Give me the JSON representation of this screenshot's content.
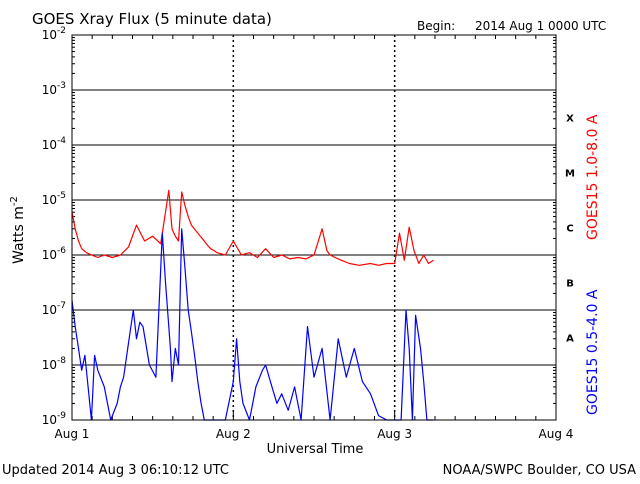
{
  "header": {
    "title": "GOES Xray Flux (5 minute data)",
    "begin_label": "Begin:",
    "begin_value": "2014 Aug 1 0000 UTC"
  },
  "footer": {
    "updated": "Updated 2014 Aug  3 06:10:12 UTC",
    "credit": "NOAA/SWPC Boulder, CO USA"
  },
  "chart_data": {
    "type": "line",
    "title": "GOES Xray Flux (5 minute data)",
    "xlabel": "Universal Time",
    "ylabel": "Watts m-2",
    "ylabel_base": "Watts m",
    "ylabel_sup": "-2",
    "y_scale": "log",
    "ylim": [
      1e-09,
      0.01
    ],
    "y_ticks": [
      {
        "value": 1e-09,
        "mant": "10",
        "exp": "-9"
      },
      {
        "value": 1e-08,
        "mant": "10",
        "exp": "-8"
      },
      {
        "value": 1e-07,
        "mant": "10",
        "exp": "-7"
      },
      {
        "value": 1e-06,
        "mant": "10",
        "exp": "-6"
      },
      {
        "value": 1e-05,
        "mant": "10",
        "exp": "-5"
      },
      {
        "value": 0.0001,
        "mant": "10",
        "exp": "-4"
      },
      {
        "value": 0.001,
        "mant": "10",
        "exp": "-3"
      },
      {
        "value": 0.01,
        "mant": "10",
        "exp": "-2"
      }
    ],
    "x_unit": "days since 2014 Aug 1 0000 UTC",
    "xlim": [
      0,
      3
    ],
    "x_ticks": [
      {
        "value": 0,
        "label": "Aug 1"
      },
      {
        "value": 1,
        "label": "Aug 2"
      },
      {
        "value": 2,
        "label": "Aug 3"
      },
      {
        "value": 3,
        "label": "Aug 4"
      }
    ],
    "day_dividers": [
      1,
      2
    ],
    "grid": "horizontal solid lines at each decade; vertical dotted lines at day boundaries",
    "flare_classes": [
      {
        "label": "X",
        "low": 0.0001,
        "high": 0.001
      },
      {
        "label": "M",
        "low": 1e-05,
        "high": 0.0001
      },
      {
        "label": "C",
        "low": 1e-06,
        "high": 1e-05
      },
      {
        "label": "B",
        "low": 1e-07,
        "high": 1e-06
      },
      {
        "label": "A",
        "low": 1e-08,
        "high": 1e-07
      }
    ],
    "series": [
      {
        "name": "GOES15 1.0-8.0 A",
        "color": "#ff0000",
        "x": [
          0,
          0.02,
          0.04,
          0.06,
          0.09,
          0.12,
          0.16,
          0.2,
          0.25,
          0.3,
          0.35,
          0.4,
          0.45,
          0.5,
          0.55,
          0.6,
          0.62,
          0.64,
          0.66,
          0.68,
          0.7,
          0.72,
          0.74,
          0.78,
          0.82,
          0.84,
          0.86,
          0.88,
          0.9,
          0.95,
          1,
          1.05,
          1.1,
          1.15,
          1.2,
          1.25,
          1.3,
          1.35,
          1.4,
          1.45,
          1.5,
          1.55,
          1.58,
          1.6,
          1.63,
          1.67,
          1.72,
          1.78,
          1.85,
          1.9,
          1.95,
          2,
          2.03,
          2.06,
          2.09,
          2.12,
          2.15,
          2.18,
          2.21,
          2.24
        ],
        "values": [
          6e-06,
          3e-06,
          1.8e-06,
          1.3e-06,
          1.1e-06,
          1e-06,
          9e-07,
          1e-06,
          9e-07,
          1e-06,
          1.4e-06,
          3.5e-06,
          1.8e-06,
          2.2e-06,
          1.6e-06,
          1.5e-05,
          3e-06,
          2.2e-06,
          1.8e-06,
          1.4e-05,
          8e-06,
          5e-06,
          3.5e-06,
          2.5e-06,
          1.8e-06,
          1.5e-06,
          1.3e-06,
          1.2e-06,
          1.1e-06,
          1e-06,
          1.8e-06,
          1e-06,
          1.1e-06,
          9e-07,
          1.3e-06,
          9e-07,
          1e-06,
          8.5e-07,
          9e-07,
          8.5e-07,
          1e-06,
          3e-06,
          1.2e-06,
          1e-06,
          9e-07,
          8e-07,
          7e-07,
          6.5e-07,
          7e-07,
          6.5e-07,
          7e-07,
          7e-07,
          2.5e-06,
          8e-07,
          3.2e-06,
          1.2e-06,
          7e-07,
          1e-06,
          7e-07,
          8e-07
        ]
      },
      {
        "name": "GOES15 0.5-4.0 A",
        "color": "#0000ff",
        "x": [
          0,
          0.02,
          0.04,
          0.06,
          0.08,
          0.1,
          0.12,
          0.14,
          0.16,
          0.2,
          0.24,
          0.28,
          0.3,
          0.32,
          0.36,
          0.38,
          0.4,
          0.42,
          0.44,
          0.48,
          0.52,
          0.56,
          0.58,
          0.6,
          0.61,
          0.62,
          0.64,
          0.66,
          0.68,
          0.7,
          0.72,
          0.74,
          0.76,
          0.78,
          0.8,
          0.82,
          0.86,
          0.9,
          0.95,
          1,
          1.02,
          1.04,
          1.06,
          1.1,
          1.14,
          1.18,
          1.2,
          1.23,
          1.27,
          1.3,
          1.34,
          1.38,
          1.42,
          1.46,
          1.5,
          1.55,
          1.6,
          1.65,
          1.7,
          1.75,
          1.8,
          1.85,
          1.9,
          1.95,
          2,
          2.04,
          2.07,
          2.09,
          2.11,
          2.13,
          2.16,
          2.18,
          2.2,
          2.24
        ],
        "values": [
          1.5e-07,
          5e-08,
          2e-08,
          8e-09,
          1.5e-08,
          4e-09,
          1e-09,
          1.5e-08,
          8e-09,
          4e-09,
          1e-09,
          2e-09,
          4e-09,
          6e-09,
          4e-08,
          1e-07,
          3e-08,
          6e-08,
          5e-08,
          1e-08,
          6e-09,
          2.5e-06,
          3e-07,
          5e-08,
          2e-08,
          5e-09,
          2e-08,
          1e-08,
          3e-06,
          6e-07,
          1e-07,
          4e-08,
          1.5e-08,
          5e-09,
          2e-09,
          1e-09,
          1e-09,
          1e-09,
          1e-09,
          5e-09,
          3e-08,
          5e-09,
          2e-09,
          1e-09,
          4e-09,
          8e-09,
          1e-08,
          5e-09,
          2e-09,
          3e-09,
          1.5e-09,
          4e-09,
          1e-09,
          5e-08,
          6e-09,
          2e-08,
          1e-09,
          3e-08,
          6e-09,
          2e-08,
          5e-09,
          3e-09,
          1.2e-09,
          1e-09,
          1e-09,
          1e-09,
          1e-07,
          2e-08,
          1e-09,
          8e-08,
          2e-08,
          5e-09,
          1e-09,
          1e-09
        ]
      }
    ]
  }
}
